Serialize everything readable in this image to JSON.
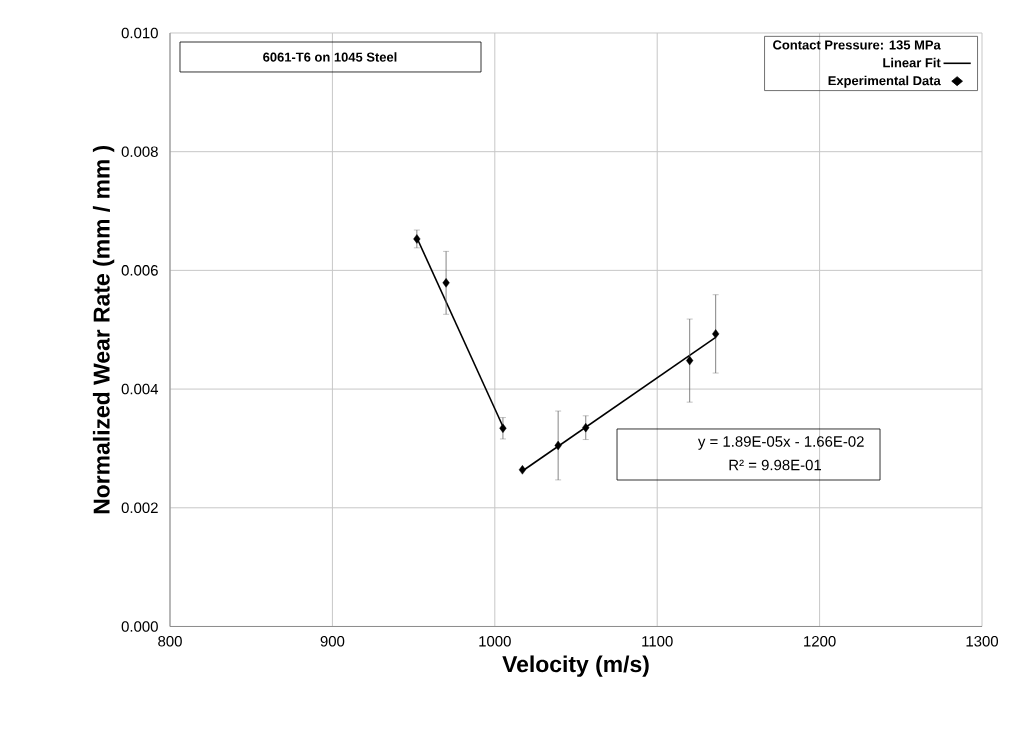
{
  "chart_data": {
    "type": "scatter",
    "xlabel": "Velocity (m/s)",
    "ylabel": "Normalized Wear Rate (mm / mm )",
    "legend_title": "Contact Pressure:   135 MPa",
    "annotations": [
      "6061-T6 on 1045 Steel",
      "y = 1.89E-05x - 1.66E-02",
      "R² = 9.98E-01"
    ],
    "xlim": [
      800,
      1300
    ],
    "xticks": [
      800,
      900,
      1000,
      1100,
      1200,
      1300
    ],
    "ylim": [
      0,
      0.01
    ],
    "yticks": [
      {
        "value": 0,
        "label": "0.000"
      },
      {
        "value": 0.002,
        "label": "0.002"
      },
      {
        "value": 0.004,
        "label": "0.004"
      },
      {
        "value": 0.006,
        "label": "0.006"
      },
      {
        "value": 0.008,
        "label": "0.008"
      },
      {
        "value": 0.01,
        "label": "0.010"
      }
    ],
    "grid": true,
    "legend": "top right",
    "series": [
      {
        "name": "Linear Fit",
        "type": "line",
        "color": "#000000",
        "marker": "none",
        "x": [
          952,
          1005
        ],
        "values": [
          0.00655,
          0.00337
        ]
      },
      {
        "type": "line",
        "color": "#000000",
        "marker": "none",
        "x": [
          1017,
          1136
        ],
        "values": [
          0.00262,
          0.00487
        ]
      },
      {
        "name": "Experimental Data",
        "color": "#000000",
        "marker": "diamond",
        "x": [
          952,
          970,
          1005,
          1017,
          1039,
          1056,
          1120,
          1136
        ],
        "values": [
          0.00653,
          0.00579,
          0.00334,
          0.00264,
          0.00305,
          0.00335,
          0.00448,
          0.00493
        ],
        "errors": [
          0.00015,
          0.00053,
          0.00018,
          null,
          0.00058,
          0.0002,
          0.0007,
          0.00066
        ]
      }
    ]
  }
}
